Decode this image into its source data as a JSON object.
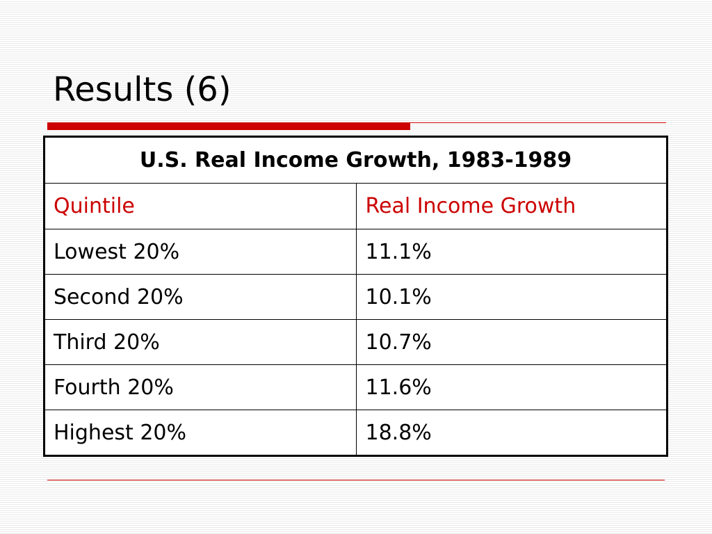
{
  "slide": {
    "title": "Results (6)",
    "accent_color": "#cc0000"
  },
  "table": {
    "caption": "U.S. Real Income Growth, 1983-1989",
    "columns": [
      "Quintile",
      "Real Income Growth"
    ],
    "rows": [
      [
        "Lowest 20%",
        "11.1%"
      ],
      [
        "Second 20%",
        "10.1%"
      ],
      [
        "Third 20%",
        "10.7%"
      ],
      [
        "Fourth 20%",
        "11.6%"
      ],
      [
        "Highest 20%",
        "18.8%"
      ]
    ]
  }
}
